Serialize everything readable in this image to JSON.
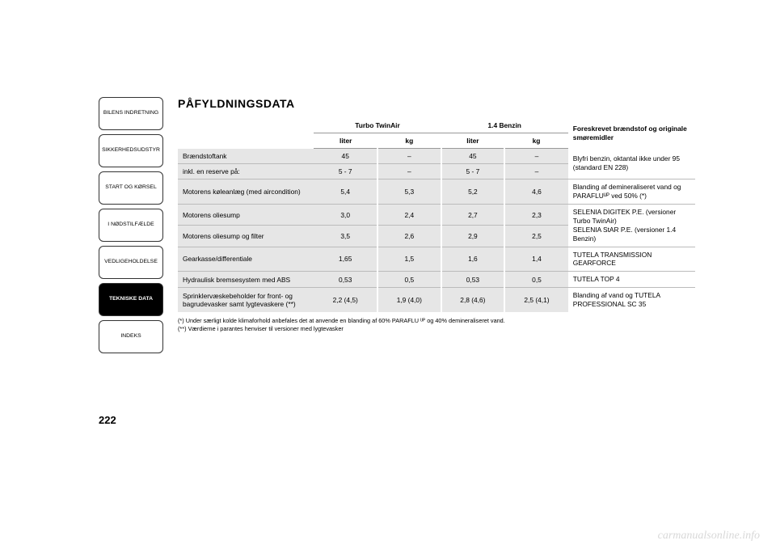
{
  "colors": {
    "table_shade": "#e6e6e6",
    "border": "#bbbbbb",
    "active_tab_bg": "#000000",
    "active_tab_fg": "#ffffff"
  },
  "sidebar": {
    "tabs": [
      {
        "label": "BILENS INDRETNING",
        "active": false
      },
      {
        "label": "SIKKERHEDSUDSTYR",
        "active": false
      },
      {
        "label": "START OG KØRSEL",
        "active": false
      },
      {
        "label": "I NØDSTILFÆLDE",
        "active": false
      },
      {
        "label": "VEDLIGEHOLDELSE",
        "active": false
      },
      {
        "label": "TEKNISKE DATA",
        "active": true
      },
      {
        "label": "INDEKS",
        "active": false
      }
    ]
  },
  "title": "PÅFYLDNINGSDATA",
  "table": {
    "engine_groups": [
      "Turbo TwinAir",
      "1.4 Benzin"
    ],
    "sub_headers": [
      "liter",
      "kg",
      "liter",
      "kg"
    ],
    "notes_header": "Foreskrevet brændstof og originale smøremidler",
    "rows": [
      {
        "label": "Brændstoftank",
        "vals": [
          "45",
          "–",
          "45",
          "–"
        ],
        "note": "Blyfri benzin, oktantal ikke under 95 (standard EN 228)",
        "row_span": 2
      },
      {
        "label": "inkl. en reserve på:",
        "vals": [
          "5 - 7",
          "–",
          "5 - 7",
          "–"
        ]
      },
      {
        "label": "Motorens køleanlæg (med aircondition)",
        "vals": [
          "5,4",
          "5,3",
          "5,2",
          "4,6"
        ],
        "note": "Blanding af demineraliseret vand og PARAFLUᵁᴾ ved 50% (*)"
      },
      {
        "label": "Motorens oliesump",
        "vals": [
          "3,0",
          "2,4",
          "2,7",
          "2,3"
        ],
        "note": "SELENIA DIGITEK P.E. (versioner Turbo TwinAir)\nSELENIA StAR P.E. (versioner 1.4 Benzin)",
        "row_span": 2
      },
      {
        "label": "Motorens oliesump og filter",
        "vals": [
          "3,5",
          "2,6",
          "2,9",
          "2,5"
        ]
      },
      {
        "label": "Gearkasse/differentiale",
        "vals": [
          "1,65",
          "1,5",
          "1,6",
          "1,4"
        ],
        "note": "TUTELA TRANSMISSION GEARFORCE"
      },
      {
        "label": "Hydraulisk bremsesystem med ABS",
        "vals": [
          "0,53",
          "0,5",
          "0,53",
          "0,5"
        ],
        "note": "TUTELA TOP 4"
      },
      {
        "label": "Sprinklervæskebeholder for front- og bagrudevasker samt lygtevaskere (**)",
        "vals": [
          "2,2 (4,5)",
          "1,9 (4,0)",
          "2,8 (4,6)",
          "2,5 (4,1)"
        ],
        "note": "Blanding af vand og TUTELA PROFESSIONAL SC 35"
      }
    ]
  },
  "footnotes": [
    "(*) Under særligt kolde klimaforhold anbefales det at anvende en blanding af 60% PARAFLU ᵁᴾ og 40% demineraliseret vand.",
    "(**) Værdierne i parantes henviser til versioner med lygtevasker"
  ],
  "page_number": "222",
  "watermark": "carmanualsonline.info"
}
